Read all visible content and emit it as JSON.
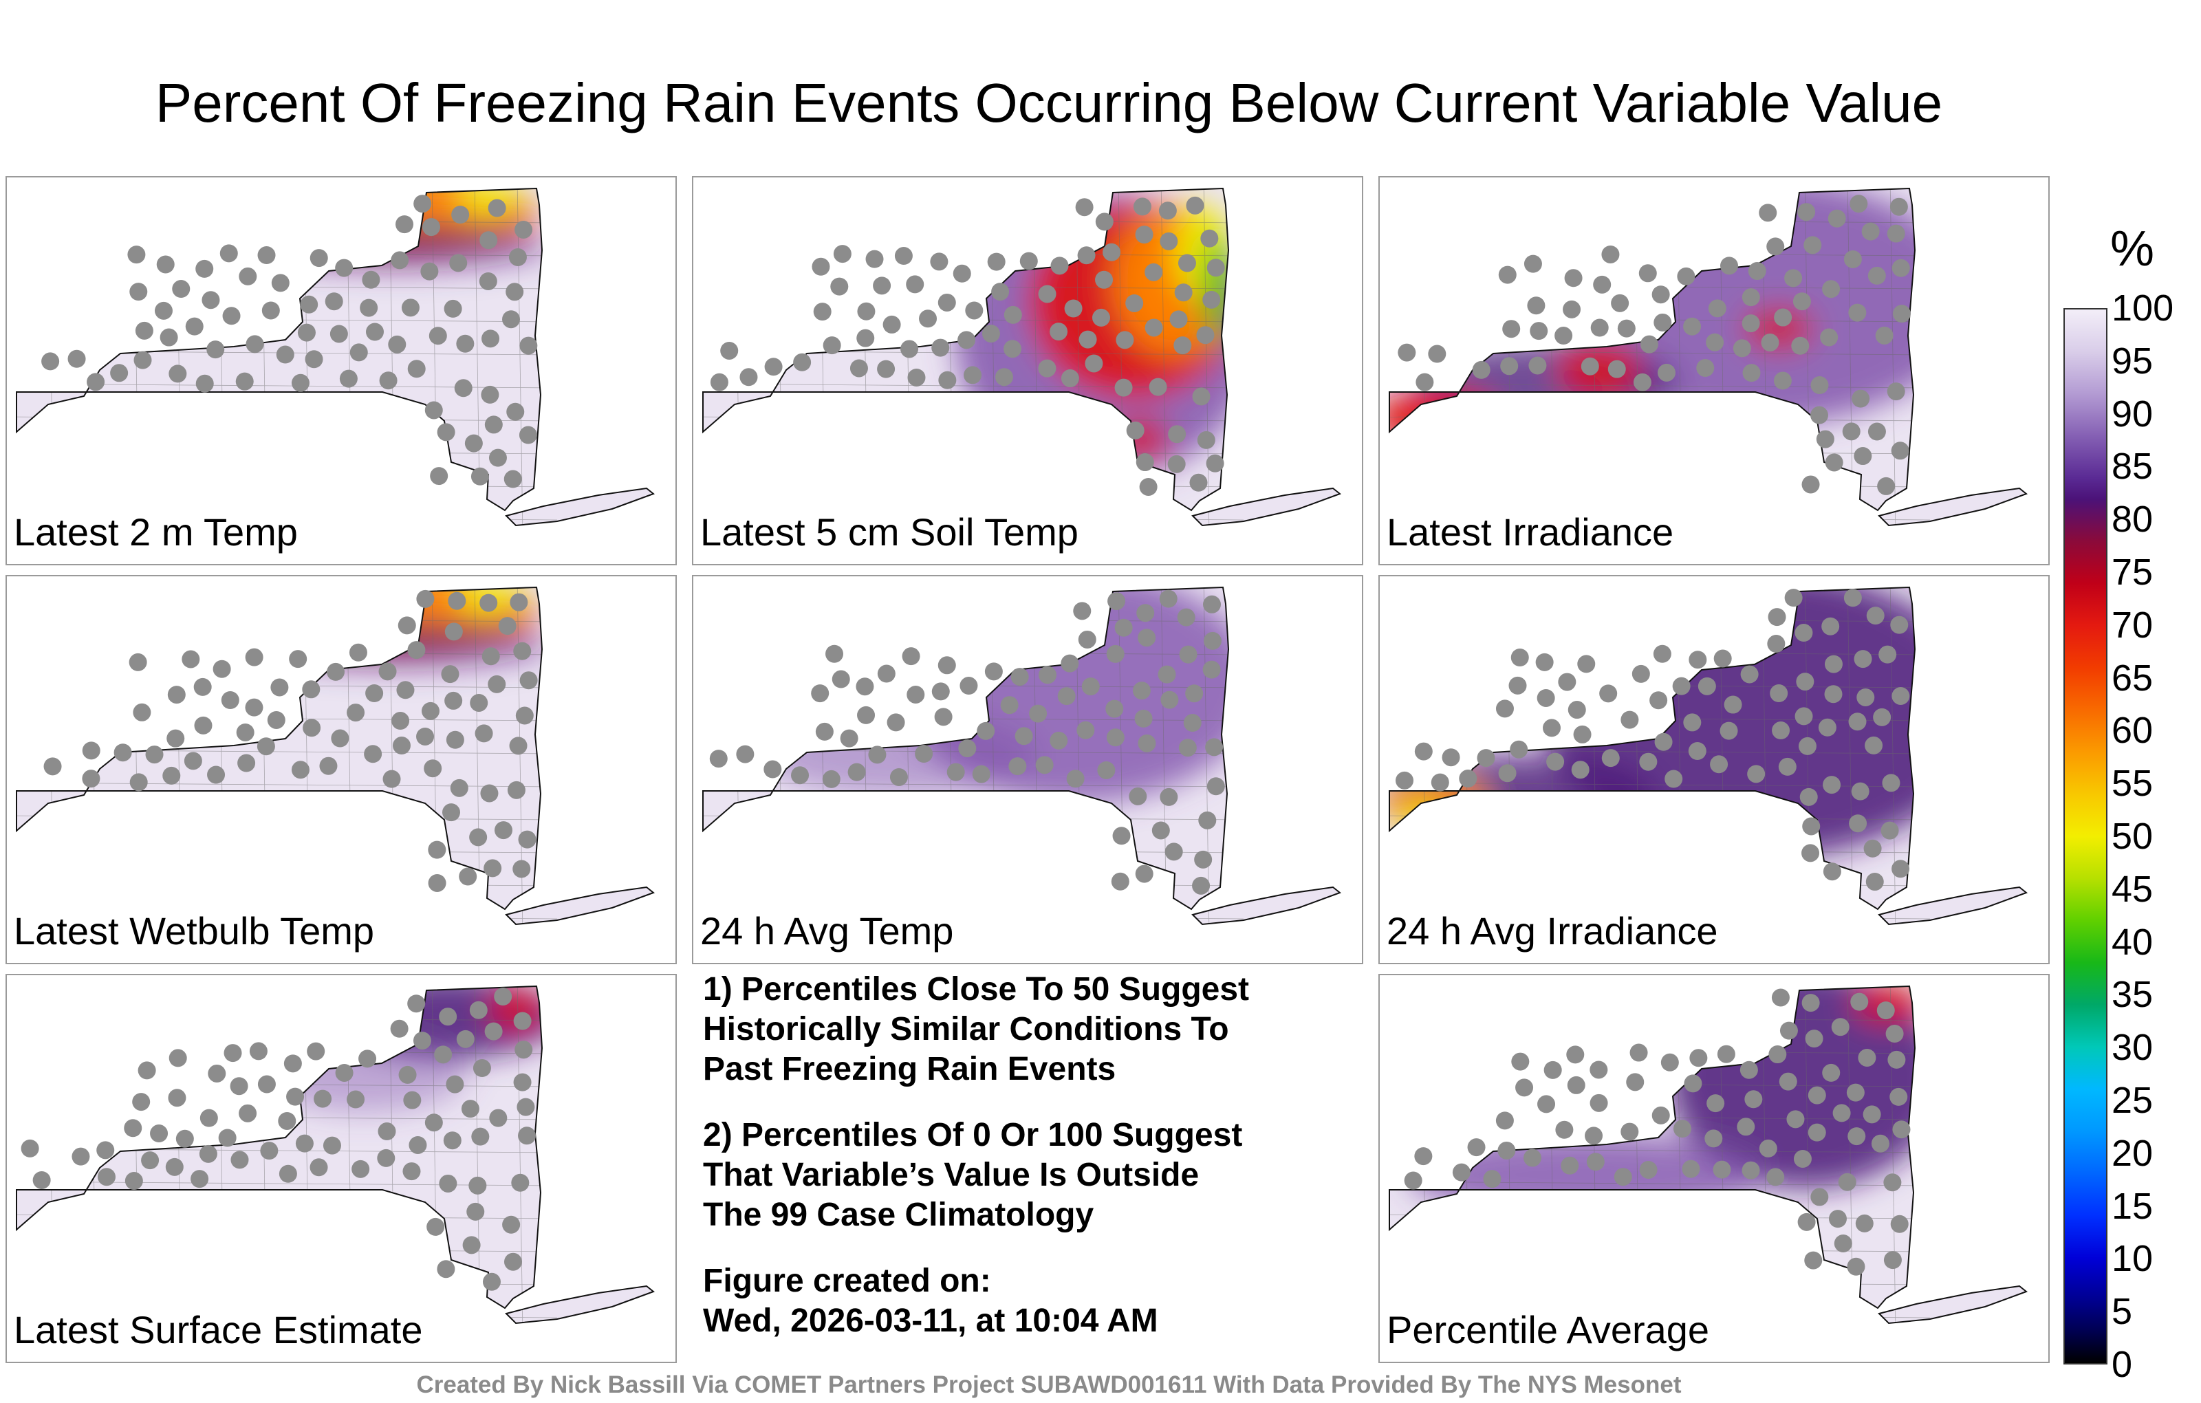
{
  "title": "Percent Of Freezing Rain Events Occurring Below Current Variable Value",
  "panels": [
    {
      "label": "Latest 2 m Temp",
      "theme": "hot_north",
      "typical": "100"
    },
    {
      "label": "Latest 5 cm Soil Temp",
      "theme": "hot_east",
      "typical": "95"
    },
    {
      "label": "Latest Irradiance",
      "theme": "mixed_west",
      "typical": "89"
    },
    {
      "label": "Latest Wetbulb Temp",
      "theme": "hot_north",
      "typical": "100"
    },
    {
      "label": "24 h Avg Temp",
      "theme": "purple_light",
      "typical": "93"
    },
    {
      "label": "24 h Avg Irradiance",
      "theme": "purple_dark",
      "typical": "92"
    },
    {
      "label": "Latest Surface Estimate",
      "theme": "purple_north",
      "typical": "100"
    },
    {
      "label": "Percentile Average",
      "theme": "purple_mid",
      "typical": "96"
    }
  ],
  "notes": {
    "note1_line1": "1) Percentiles Close To 50 Suggest",
    "note1_line2": "Historically Similar Conditions To",
    "note1_line3": "Past Freezing Rain Events",
    "note2_line1": "2) Percentiles Of 0 Or 100 Suggest",
    "note2_line2": "That Variable’s Value Is Outside",
    "note2_line3": "The 99 Case Climatology",
    "created_label": "Figure created on:",
    "created_value": "Wed, 2026-03-11, at 10:04 AM"
  },
  "legend": {
    "unit": "%",
    "ticks": [
      "100",
      "95",
      "90",
      "85",
      "80",
      "75",
      "70",
      "65",
      "60",
      "55",
      "50",
      "45",
      "40",
      "35",
      "30",
      "25",
      "20",
      "15",
      "10",
      "5",
      "0"
    ]
  },
  "footer": "Created By Nick Bassill Via COMET Partners Project SUBAWD001611 With Data Provided By The NYS Mesonet",
  "colors": {
    "light": "#ebe4f2",
    "purple": "#7a4aa8",
    "dark_purple": "#4a1878",
    "red": "#e01010",
    "orange": "#ff8a00",
    "yellow": "#f2ee00",
    "green": "#28c020",
    "marker": "#8c8c8c"
  }
}
